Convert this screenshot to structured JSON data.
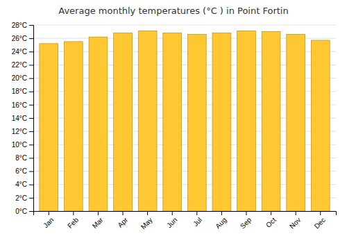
{
  "chart_data": {
    "type": "bar",
    "title": "Average monthly temperatures (°C ) in Point Fortin",
    "categories": [
      "Jan",
      "Feb",
      "Mar",
      "Apr",
      "May",
      "Jun",
      "Jul",
      "Aug",
      "Sep",
      "Oct",
      "Nov",
      "Dec"
    ],
    "values": [
      25.2,
      25.5,
      26.2,
      26.8,
      27.1,
      26.8,
      26.6,
      26.8,
      27.1,
      27.0,
      26.6,
      25.7
    ],
    "color": "#FFC832",
    "ylim": [
      0,
      28
    ],
    "yticks": [
      {
        "value": 0,
        "label": "0°C"
      },
      {
        "value": 2,
        "label": "2°C"
      },
      {
        "value": 4,
        "label": "4°C"
      },
      {
        "value": 6,
        "label": "6°C"
      },
      {
        "value": 8,
        "label": "8°C"
      },
      {
        "value": 10,
        "label": "10°C"
      },
      {
        "value": 12,
        "label": "12°C"
      },
      {
        "value": 14,
        "label": "14°C"
      },
      {
        "value": 16,
        "label": "16°C"
      },
      {
        "value": 18,
        "label": "18°C"
      },
      {
        "value": 20,
        "label": "20°C"
      },
      {
        "value": 22,
        "label": "22°C"
      },
      {
        "value": 24,
        "label": "24°C"
      },
      {
        "value": 26,
        "label": "26°C"
      },
      {
        "value": 28,
        "label": "28°C"
      }
    ],
    "grid": true
  }
}
